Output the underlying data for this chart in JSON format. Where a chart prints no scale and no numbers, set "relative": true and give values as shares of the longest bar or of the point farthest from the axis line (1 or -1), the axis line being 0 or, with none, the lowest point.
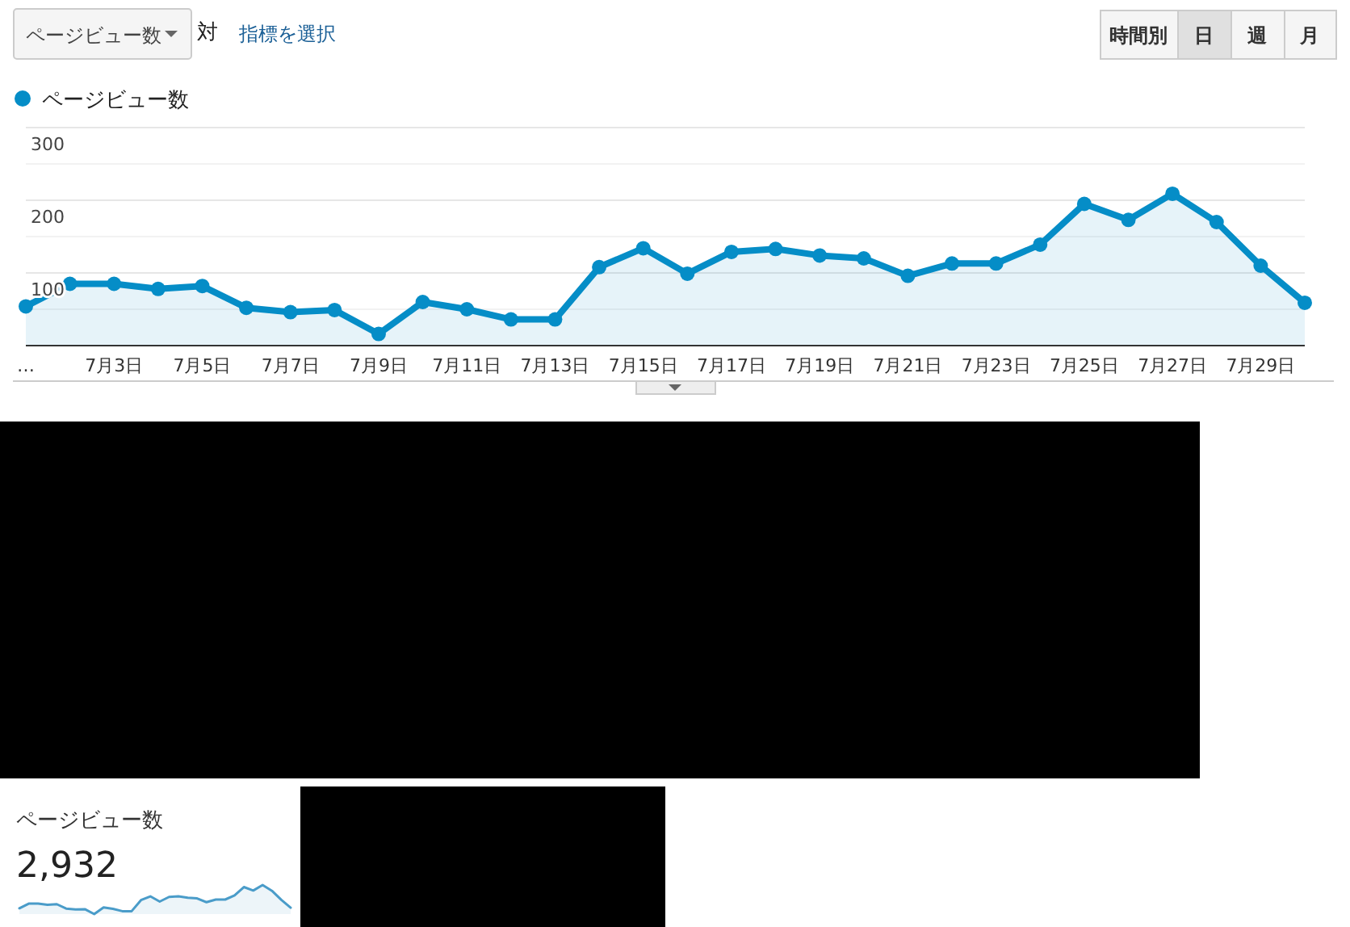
{
  "chart_data": [
    {
      "type": "area",
      "annotations": [
        "ページビュー数",
        "対",
        "指標を選択",
        "時間別",
        "日",
        "週",
        "月"
      ],
      "categories": [
        "…",
        null,
        "7月3日",
        null,
        "7月5日",
        null,
        "7月7日",
        null,
        "7月9日",
        null,
        "7月11日",
        null,
        "7月13日",
        null,
        "7月15日",
        null,
        "7月17日",
        null,
        "7月19日",
        null,
        "7月21日",
        null,
        "7月23日",
        null,
        "7月25日",
        null,
        "7月27日",
        null,
        "7月29日",
        null
      ],
      "series": [
        {
          "name": "ページビュー数",
          "color": "#058dc7",
          "values": [
            54,
            85,
            85,
            78,
            82,
            52,
            46,
            49,
            16,
            60,
            50,
            36,
            36,
            108,
            134,
            99,
            129,
            133,
            124,
            120,
            96,
            113,
            113,
            139,
            195,
            173,
            209,
            170,
            110,
            59
          ]
        }
      ],
      "ylim": [
        0,
        300
      ],
      "yticks": [
        {
          "value": 50,
          "label": null
        },
        100,
        {
          "value": 150,
          "label": null
        },
        200,
        {
          "value": 250,
          "label": null
        },
        300
      ],
      "grid": "y",
      "legend": "top left",
      "marker": "circle",
      "line_style": "solid"
    },
    {
      "type": "area",
      "title": "ページビュー数",
      "annotations": [
        "2,932"
      ],
      "relative": true,
      "categories": [
        null,
        null,
        null,
        null,
        null,
        null,
        null,
        null,
        null,
        null,
        null,
        null,
        null,
        null,
        null,
        null,
        null,
        null,
        null,
        null,
        null,
        null,
        null,
        null,
        null,
        null,
        null,
        null,
        null,
        null
      ],
      "series": [
        {
          "color": "#4a9cc9",
          "values": [
            0.2,
            0.36,
            0.36,
            0.32,
            0.34,
            0.19,
            0.16,
            0.17,
            0,
            0.23,
            0.18,
            0.1,
            0.1,
            0.48,
            0.61,
            0.43,
            0.59,
            0.61,
            0.56,
            0.54,
            0.41,
            0.5,
            0.5,
            0.64,
            0.93,
            0.81,
            1,
            0.8,
            0.49,
            0.22
          ]
        }
      ],
      "marker": "none",
      "line_style": "solid"
    }
  ]
}
